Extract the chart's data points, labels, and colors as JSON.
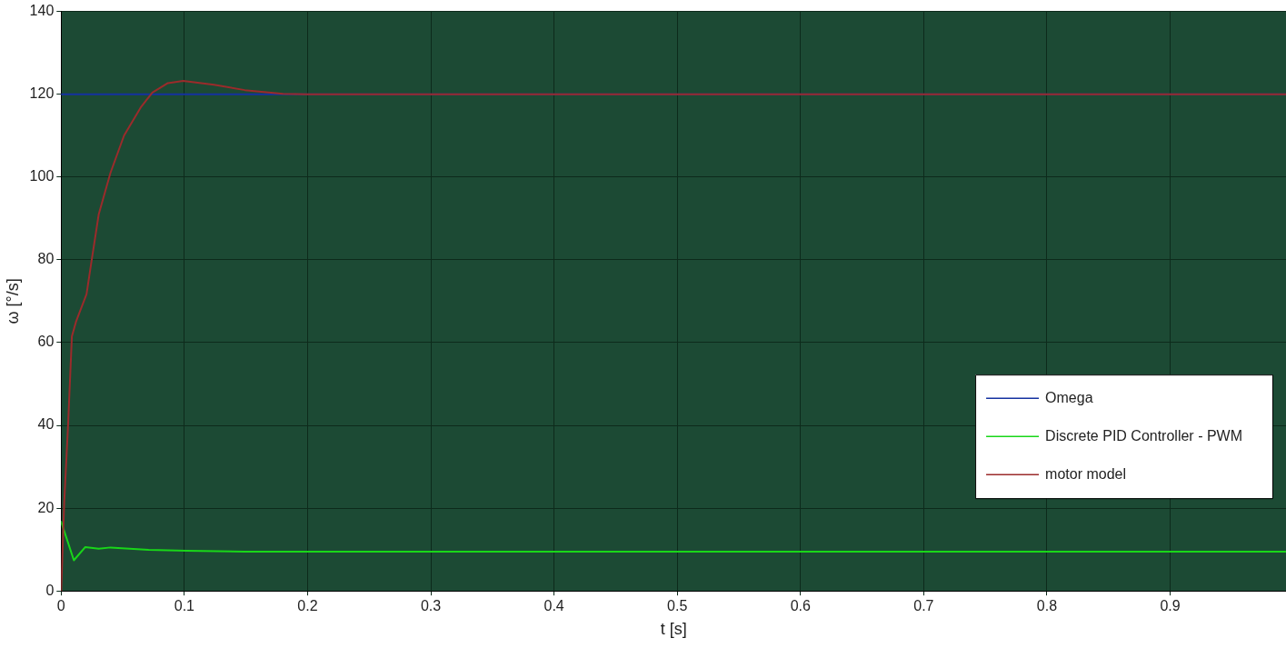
{
  "chart_data": {
    "type": "line",
    "xlabel": "t [s]",
    "ylabel": "ω [°/s]",
    "xlim": [
      0,
      0.994
    ],
    "xticks": [
      0,
      0.1,
      0.2,
      0.3,
      0.4,
      0.5,
      0.6,
      0.7,
      0.8,
      0.9
    ],
    "ylim": [
      0,
      140
    ],
    "yticks": [
      0,
      20,
      40,
      60,
      80,
      100,
      120,
      140
    ],
    "grid": true,
    "legend": "bottom right",
    "marker": "none",
    "line_style": "solid",
    "series": [
      {
        "name": "Omega",
        "color": "#1432a0",
        "x": [
          0,
          0.994
        ],
        "values": [
          120,
          120
        ]
      },
      {
        "name": "Discrete PID Controller - PWM",
        "color": "#19d619",
        "x": [
          0,
          0.0103,
          0.0196,
          0.0305,
          0.04,
          0.071,
          0.102,
          0.149,
          0.25,
          0.994
        ],
        "values": [
          16.7,
          7.4,
          10.6,
          10.2,
          10.5,
          9.9,
          9.7,
          9.5,
          9.5,
          9.5
        ]
      },
      {
        "name": "motor model",
        "color": "#9b2b2b",
        "x": [
          0,
          0.0025,
          0.0056,
          0.0087,
          0.012,
          0.0206,
          0.0243,
          0.0305,
          0.04,
          0.051,
          0.065,
          0.074,
          0.0866,
          0.099,
          0.124,
          0.149,
          0.18,
          0.2,
          0.994
        ],
        "values": [
          0,
          21.5,
          40,
          61.5,
          65,
          71.7,
          79,
          91,
          101,
          110,
          117,
          120.4,
          122.7,
          123.2,
          122.3,
          121,
          120.1,
          120,
          120
        ]
      }
    ]
  }
}
